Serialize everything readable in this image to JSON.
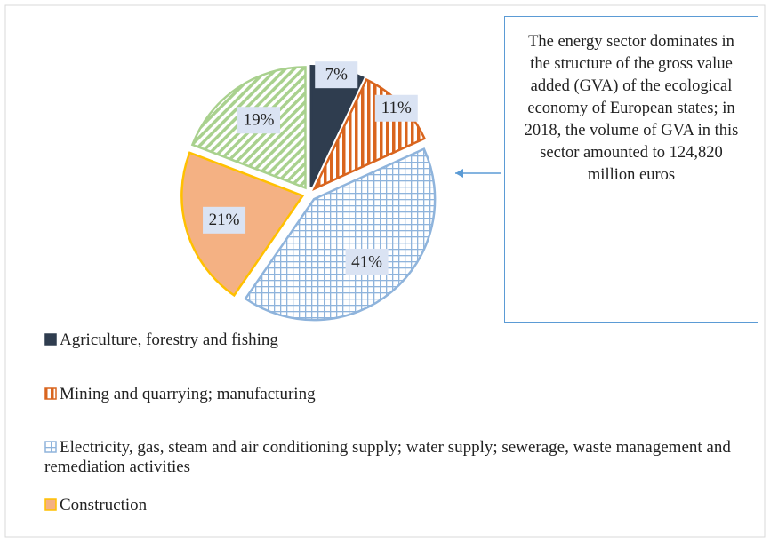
{
  "chart_data": {
    "type": "pie",
    "categories": [
      "Agriculture, forestry and fishing",
      "Mining and quarrying; manufacturing",
      "Electricity, gas, steam and air conditioning supply; water supply; sewerage, waste management and remediation activities",
      "Construction",
      null
    ],
    "values": [
      7,
      11,
      41,
      21,
      19
    ],
    "value_labels": [
      "7%",
      "11%",
      "41%",
      "21%",
      "19%"
    ],
    "colors": [
      "#2f3d4f",
      "#d9651e",
      "#8fb4dc",
      "#f4b183",
      "#a9d18e"
    ],
    "patterns": [
      "solid",
      "vertical",
      "grid",
      "solid",
      "diagonal"
    ],
    "annotation": "The energy sector dominates in the structure of the gross value added (GVA) of the ecological economy of European states; in 2018, the volume of GVA in this sector amounted to 124,820 million euros"
  }
}
